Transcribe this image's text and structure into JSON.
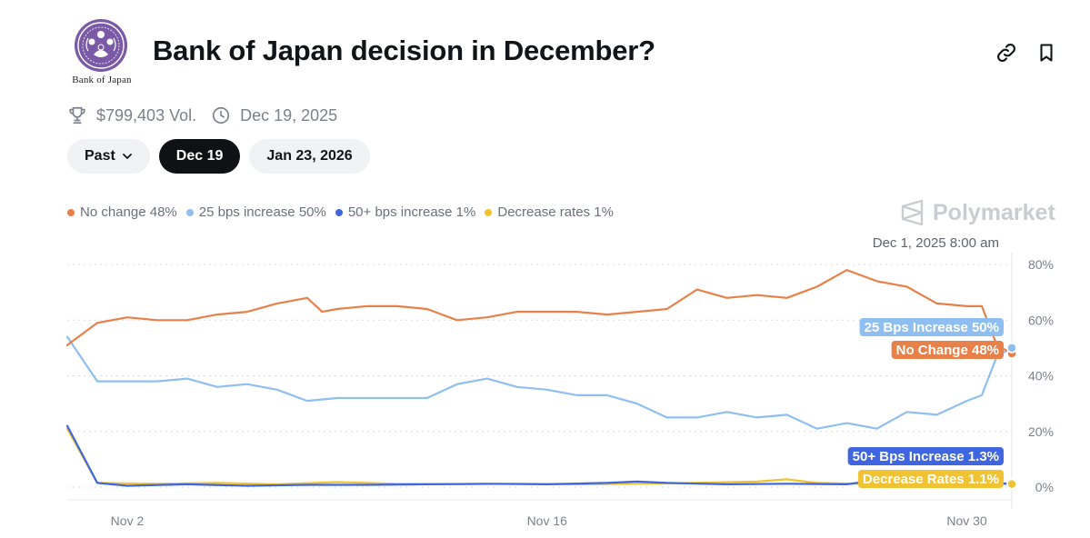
{
  "header": {
    "logo_text": "Bank of Japan",
    "title": "Bank of Japan decision in December?",
    "link_icon": "link-icon",
    "bookmark_icon": "bookmark-icon"
  },
  "meta": {
    "volume": "$799,403 Vol.",
    "end_date": "Dec 19, 2025",
    "volume_icon": "trophy-icon",
    "date_icon": "clock-icon"
  },
  "tabs": [
    {
      "label": "Past",
      "active": false,
      "has_dropdown": true
    },
    {
      "label": "Dec 19",
      "active": true
    },
    {
      "label": "Jan 23, 2026",
      "active": false
    }
  ],
  "watermark": "Polymarket",
  "hover_date": "Dec 1, 2025 8:00 am",
  "chart_data": {
    "type": "line",
    "x_range": [
      "2025-10-31",
      "2025-12-01"
    ],
    "x_ticks": [
      {
        "date": "2025-11-02",
        "label": "Nov 2"
      },
      {
        "date": "2025-11-16",
        "label": "Nov 16"
      },
      {
        "date": "2025-11-30",
        "label": "Nov 30"
      }
    ],
    "ylim": [
      0,
      80
    ],
    "y_ticks": [
      0,
      20,
      40,
      60,
      80
    ],
    "y_tick_labels": [
      "0%",
      "20%",
      "40%",
      "60%",
      "80%"
    ],
    "grid": true,
    "legend_position": "top-left",
    "series": [
      {
        "name": "No change",
        "legend_label": "No change 48%",
        "end_label": "No Change 48%",
        "color": "#e8804a",
        "points": [
          [
            "2025-10-31",
            51
          ],
          [
            "2025-11-01",
            59
          ],
          [
            "2025-11-02",
            61
          ],
          [
            "2025-11-03",
            60
          ],
          [
            "2025-11-04",
            60
          ],
          [
            "2025-11-05",
            62
          ],
          [
            "2025-11-06",
            63
          ],
          [
            "2025-11-07",
            66
          ],
          [
            "2025-11-08",
            68
          ],
          [
            "2025-11-08T12:00",
            63
          ],
          [
            "2025-11-09",
            64
          ],
          [
            "2025-11-10",
            65
          ],
          [
            "2025-11-11",
            65
          ],
          [
            "2025-11-12",
            64
          ],
          [
            "2025-11-13",
            60
          ],
          [
            "2025-11-14",
            61
          ],
          [
            "2025-11-15",
            63
          ],
          [
            "2025-11-16",
            63
          ],
          [
            "2025-11-17",
            63
          ],
          [
            "2025-11-18",
            62
          ],
          [
            "2025-11-19",
            63
          ],
          [
            "2025-11-20",
            64
          ],
          [
            "2025-11-21",
            71
          ],
          [
            "2025-11-22",
            68
          ],
          [
            "2025-11-23",
            69
          ],
          [
            "2025-11-24",
            68
          ],
          [
            "2025-11-25",
            72
          ],
          [
            "2025-11-26",
            78
          ],
          [
            "2025-11-27",
            74
          ],
          [
            "2025-11-28",
            72
          ],
          [
            "2025-11-29",
            66
          ],
          [
            "2025-11-30",
            65
          ],
          [
            "2025-11-30T12:00",
            65
          ],
          [
            "2025-12-01",
            51
          ],
          [
            "2025-12-01T12:00",
            48
          ]
        ]
      },
      {
        "name": "25 bps increase",
        "legend_label": "25 bps increase 50%",
        "end_label": "25 Bps Increase 50%",
        "color": "#8fbef0",
        "points": [
          [
            "2025-10-31",
            54
          ],
          [
            "2025-11-01",
            38
          ],
          [
            "2025-11-02",
            38
          ],
          [
            "2025-11-03",
            38
          ],
          [
            "2025-11-04",
            39
          ],
          [
            "2025-11-05",
            36
          ],
          [
            "2025-11-06",
            37
          ],
          [
            "2025-11-07",
            35
          ],
          [
            "2025-11-08",
            31
          ],
          [
            "2025-11-09",
            32
          ],
          [
            "2025-11-10",
            32
          ],
          [
            "2025-11-11",
            32
          ],
          [
            "2025-11-12",
            32
          ],
          [
            "2025-11-13",
            37
          ],
          [
            "2025-11-14",
            39
          ],
          [
            "2025-11-15",
            36
          ],
          [
            "2025-11-16",
            35
          ],
          [
            "2025-11-17",
            33
          ],
          [
            "2025-11-18",
            33
          ],
          [
            "2025-11-19",
            30
          ],
          [
            "2025-11-20",
            25
          ],
          [
            "2025-11-21",
            25
          ],
          [
            "2025-11-22",
            27
          ],
          [
            "2025-11-23",
            25
          ],
          [
            "2025-11-24",
            26
          ],
          [
            "2025-11-25",
            21
          ],
          [
            "2025-11-26",
            23
          ],
          [
            "2025-11-27",
            21
          ],
          [
            "2025-11-28",
            27
          ],
          [
            "2025-11-29",
            26
          ],
          [
            "2025-11-30",
            31
          ],
          [
            "2025-11-30T12:00",
            33
          ],
          [
            "2025-12-01",
            47
          ],
          [
            "2025-12-01T12:00",
            50
          ]
        ]
      },
      {
        "name": "50+ bps increase",
        "legend_label": "50+ bps increase 1%",
        "end_label": "50+ Bps Increase 1.3%",
        "color": "#3f66e0",
        "points": [
          [
            "2025-10-31",
            22
          ],
          [
            "2025-11-01",
            1.5
          ],
          [
            "2025-11-02",
            0.5
          ],
          [
            "2025-11-04",
            1.0
          ],
          [
            "2025-11-06",
            0.5
          ],
          [
            "2025-11-08",
            0.8
          ],
          [
            "2025-11-10",
            0.8
          ],
          [
            "2025-11-12",
            1.0
          ],
          [
            "2025-11-14",
            1.2
          ],
          [
            "2025-11-16",
            1.0
          ],
          [
            "2025-11-18",
            1.5
          ],
          [
            "2025-11-19",
            2.0
          ],
          [
            "2025-11-20",
            1.5
          ],
          [
            "2025-11-22",
            1.0
          ],
          [
            "2025-11-24",
            1.2
          ],
          [
            "2025-11-26",
            1.0
          ],
          [
            "2025-11-27",
            2.5
          ],
          [
            "2025-11-28",
            3.0
          ],
          [
            "2025-11-29",
            5.0
          ],
          [
            "2025-11-30",
            3.0
          ],
          [
            "2025-11-30T12:00",
            1.5
          ],
          [
            "2025-12-01",
            1.3
          ],
          [
            "2025-12-01T12:00",
            1.3
          ]
        ]
      },
      {
        "name": "Decrease rates",
        "legend_label": "Decrease rates 1%",
        "end_label": "Decrease Rates 1.1%",
        "color": "#f1c232",
        "points": [
          [
            "2025-10-31",
            21
          ],
          [
            "2025-11-01",
            1.5
          ],
          [
            "2025-11-03",
            1.2
          ],
          [
            "2025-11-05",
            1.5
          ],
          [
            "2025-11-07",
            1.0
          ],
          [
            "2025-11-09",
            1.8
          ],
          [
            "2025-11-11",
            1.2
          ],
          [
            "2025-11-13",
            1.0
          ],
          [
            "2025-11-15",
            1.2
          ],
          [
            "2025-11-17",
            1.0
          ],
          [
            "2025-11-19",
            1.2
          ],
          [
            "2025-11-21",
            1.5
          ],
          [
            "2025-11-23",
            2.0
          ],
          [
            "2025-11-24",
            2.8
          ],
          [
            "2025-11-25",
            1.5
          ],
          [
            "2025-11-27",
            1.0
          ],
          [
            "2025-11-29",
            1.2
          ],
          [
            "2025-12-01",
            1.1
          ],
          [
            "2025-12-01T12:00",
            1.1
          ]
        ]
      }
    ]
  }
}
